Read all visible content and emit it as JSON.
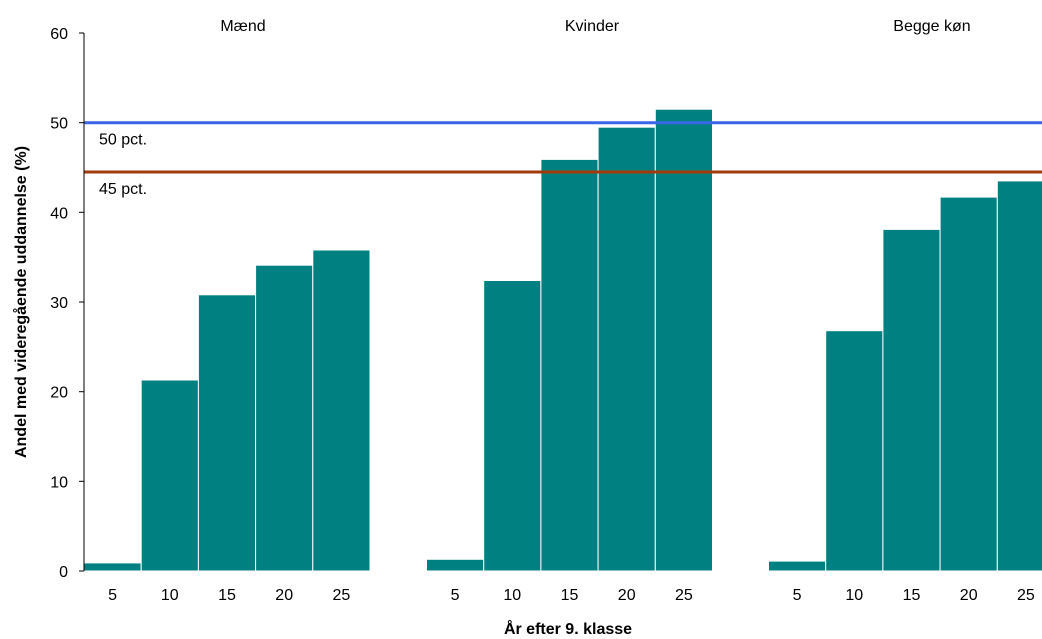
{
  "chart_data": {
    "type": "bar",
    "title": "",
    "xlabel": "År efter 9. klasse",
    "ylabel": "Andel med videregående uddannelse (%)",
    "ylim": [
      0,
      60
    ],
    "yticks": [
      0,
      10,
      20,
      30,
      40,
      50,
      60
    ],
    "grid": false,
    "legend": "none",
    "bar_color": "#008080",
    "groups": [
      {
        "name": "Mænd",
        "categories": [
          "5",
          "10",
          "15",
          "20",
          "25"
        ],
        "values": [
          0.9,
          21.3,
          30.8,
          34.1,
          35.8
        ]
      },
      {
        "name": "Kvinder",
        "categories": [
          "5",
          "10",
          "15",
          "20",
          "25"
        ],
        "values": [
          1.3,
          32.4,
          45.9,
          49.5,
          51.5
        ]
      },
      {
        "name": "Begge køn",
        "categories": [
          "5",
          "10",
          "15",
          "20",
          "25"
        ],
        "values": [
          1.1,
          26.8,
          38.1,
          41.7,
          43.5
        ]
      }
    ],
    "reference_lines": [
      {
        "label": "50 pct.",
        "value": 50,
        "color": "#3a67e8"
      },
      {
        "label": "45 pct.",
        "value": 44.5,
        "color": "#a33a0c"
      }
    ]
  }
}
